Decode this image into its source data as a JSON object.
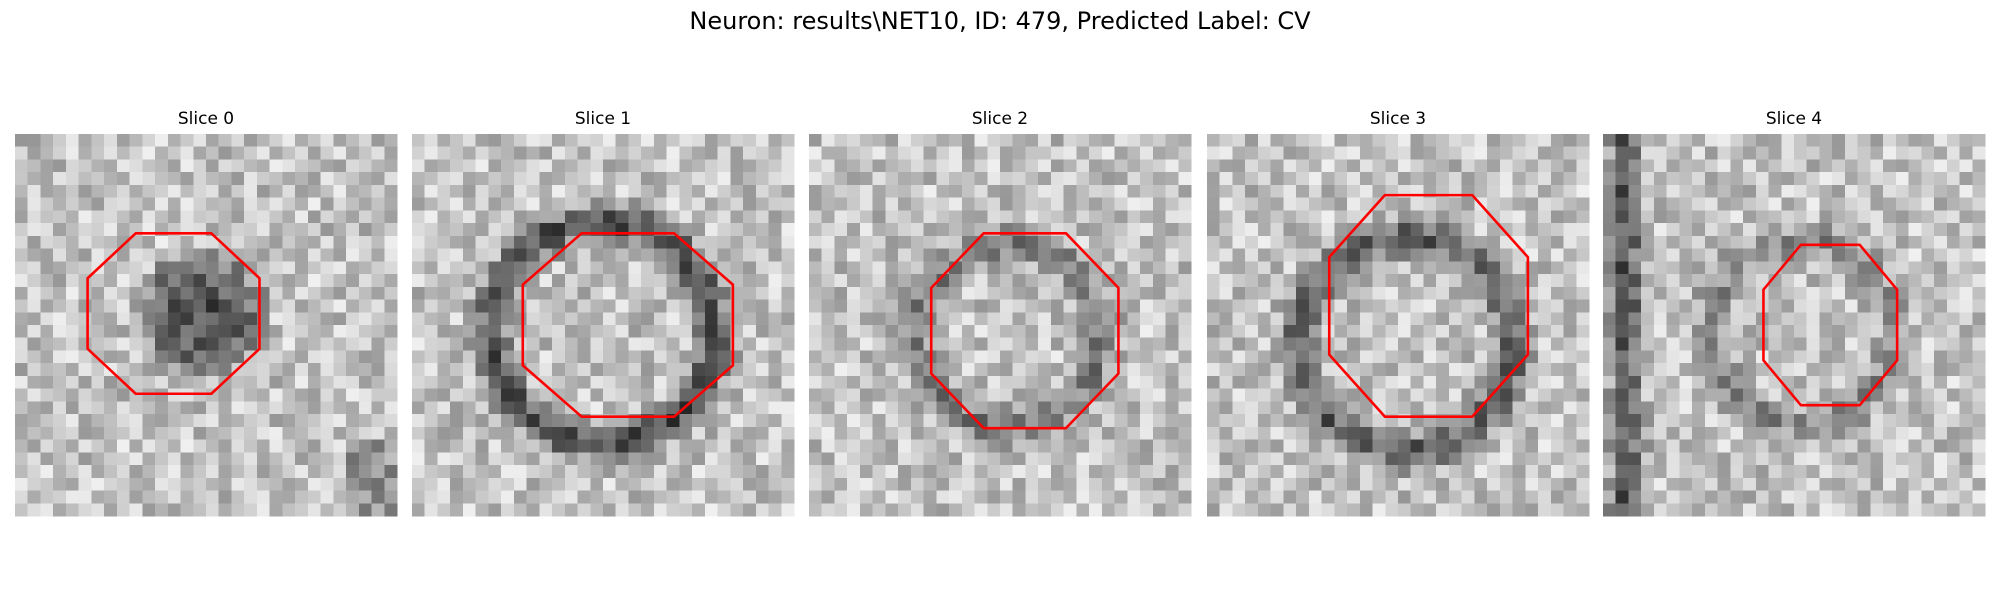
{
  "header": {
    "title": "Neuron: results\\NET10, ID: 479, Predicted Label: CV"
  },
  "panels": [
    {
      "title": "Slice 0"
    },
    {
      "title": "Slice 1"
    },
    {
      "title": "Slice 2"
    },
    {
      "title": "Slice 3"
    },
    {
      "title": "Slice 4"
    }
  ]
}
